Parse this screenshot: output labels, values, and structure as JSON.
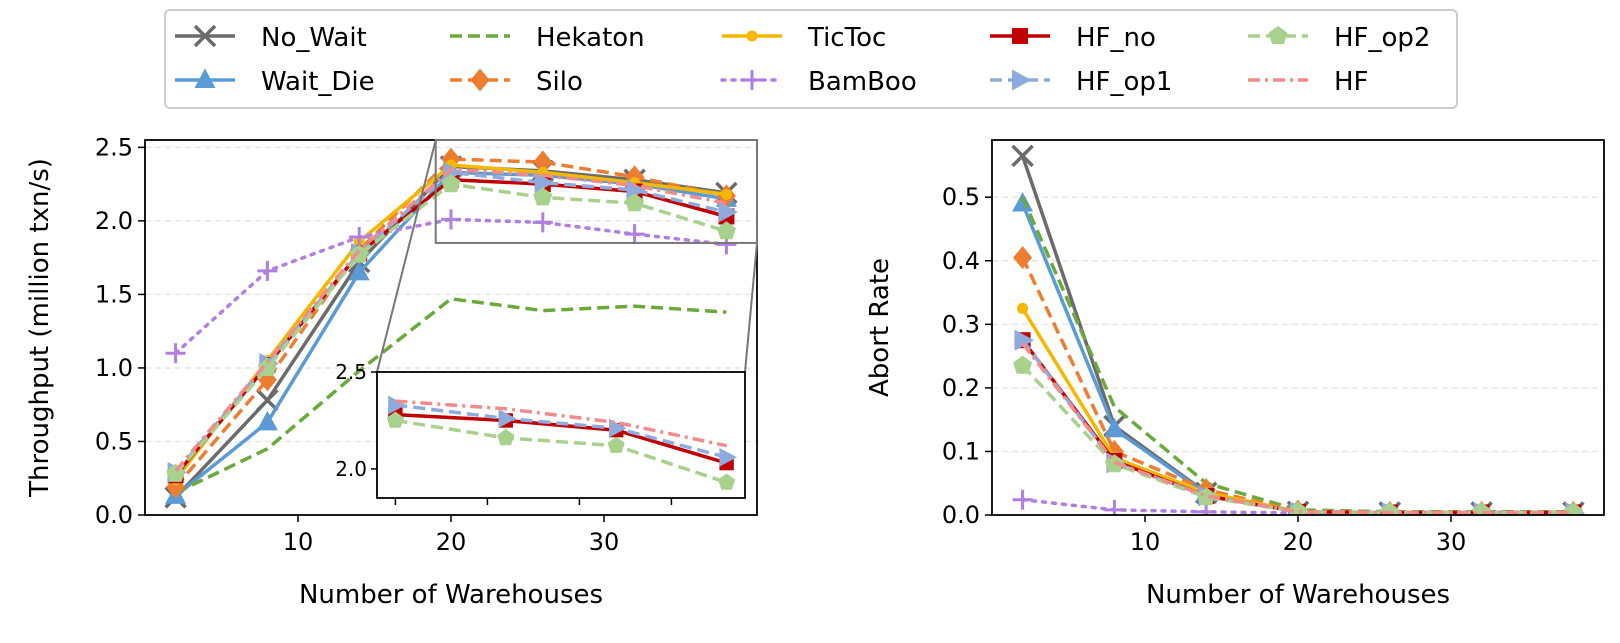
{
  "legend": {
    "entries": [
      {
        "key": "no_wait",
        "label": "No_Wait"
      },
      {
        "key": "wait_die",
        "label": "Wait_Die"
      },
      {
        "key": "hekaton",
        "label": "Hekaton"
      },
      {
        "key": "silo",
        "label": "Silo"
      },
      {
        "key": "tictoc",
        "label": "TicToc"
      },
      {
        "key": "bamboo",
        "label": "BamBoo"
      },
      {
        "key": "hf_no",
        "label": "HF_no"
      },
      {
        "key": "hf_op1",
        "label": "HF_op1"
      },
      {
        "key": "hf_op2",
        "label": "HF_op2"
      },
      {
        "key": "hf",
        "label": "HF"
      }
    ]
  },
  "styles": {
    "no_wait": {
      "color": "#6b6b6b",
      "dash": "solid",
      "marker": "x"
    },
    "wait_die": {
      "color": "#5b9bd5",
      "dash": "solid",
      "marker": "triangle"
    },
    "hekaton": {
      "color": "#6aaa3a",
      "dash": "dashed",
      "marker": "none"
    },
    "silo": {
      "color": "#ed7d31",
      "dash": "dashed",
      "marker": "diamond"
    },
    "tictoc": {
      "color": "#f5b800",
      "dash": "solid",
      "marker": "dot"
    },
    "bamboo": {
      "color": "#b07fe0",
      "dash": "dotted",
      "marker": "plus"
    },
    "hf_no": {
      "color": "#c00000",
      "dash": "solid",
      "marker": "square"
    },
    "hf_op1": {
      "color": "#8faadc",
      "dash": "dashed",
      "marker": "triangle-right"
    },
    "hf_op2": {
      "color": "#a9d18e",
      "dash": "dashed",
      "marker": "pentagon"
    },
    "hf": {
      "color": "#f08c8c",
      "dash": "dashdot",
      "marker": "none"
    }
  },
  "chart_data": [
    {
      "type": "line",
      "xlabel": "Number of Warehouses",
      "ylabel": "Throughput (million txn/s)",
      "xlim": [
        0,
        40
      ],
      "ylim": [
        0,
        2.55
      ],
      "xticks": [
        10,
        20,
        30
      ],
      "yticks": [
        0.0,
        0.5,
        1.0,
        1.5,
        2.0,
        2.5
      ],
      "ytick_labels": [
        "0.0",
        "0.5",
        "1.0",
        "1.5",
        "2.0",
        "2.5"
      ],
      "grid": "horizontal",
      "x": [
        2,
        8,
        14,
        20,
        26,
        32,
        38
      ],
      "series": [
        {
          "key": "no_wait",
          "name": "No_Wait",
          "values": [
            0.12,
            0.78,
            1.72,
            2.37,
            2.34,
            2.28,
            2.19
          ]
        },
        {
          "key": "wait_die",
          "name": "Wait_Die",
          "values": [
            0.13,
            0.63,
            1.65,
            2.33,
            2.31,
            2.25,
            2.15
          ]
        },
        {
          "key": "hekaton",
          "name": "Hekaton",
          "values": [
            0.15,
            0.45,
            0.98,
            1.47,
            1.39,
            1.42,
            1.38
          ]
        },
        {
          "key": "silo",
          "name": "Silo",
          "values": [
            0.19,
            0.92,
            1.8,
            2.42,
            2.4,
            2.3,
            2.17
          ]
        },
        {
          "key": "tictoc",
          "name": "TicToc",
          "values": [
            0.24,
            1.05,
            1.86,
            2.38,
            2.33,
            2.26,
            2.18
          ]
        },
        {
          "key": "bamboo",
          "name": "BamBoo",
          "values": [
            1.1,
            1.66,
            1.89,
            2.01,
            1.99,
            1.91,
            1.84
          ]
        },
        {
          "key": "hf_no",
          "name": "HF_no",
          "values": [
            0.27,
            1.02,
            1.78,
            2.28,
            2.25,
            2.2,
            2.03
          ]
        },
        {
          "key": "hf_op1",
          "name": "HF_op1",
          "values": [
            0.29,
            1.03,
            1.78,
            2.33,
            2.26,
            2.21,
            2.06
          ]
        },
        {
          "key": "hf_op2",
          "name": "HF_op2",
          "values": [
            0.28,
            1.0,
            1.77,
            2.25,
            2.16,
            2.12,
            1.93
          ]
        },
        {
          "key": "hf",
          "name": "HF",
          "values": [
            0.3,
            1.04,
            1.8,
            2.35,
            2.31,
            2.24,
            2.12
          ]
        }
      ],
      "inset": {
        "xlim": [
          19,
          39
        ],
        "ylim": [
          1.85,
          2.5
        ],
        "yticks": [
          2.0,
          2.5
        ],
        "ytick_labels": [
          "2.0",
          "2.5"
        ],
        "series_keys": [
          "hf_no",
          "hf_op1",
          "hf_op2",
          "hf"
        ]
      }
    },
    {
      "type": "line",
      "xlabel": "Number of Warehouses",
      "ylabel": "Abort Rate",
      "xlim": [
        0,
        40
      ],
      "ylim": [
        0,
        0.59
      ],
      "xticks": [
        10,
        20,
        30
      ],
      "yticks": [
        0.0,
        0.1,
        0.2,
        0.3,
        0.4,
        0.5
      ],
      "ytick_labels": [
        "0.0",
        "0.1",
        "0.2",
        "0.3",
        "0.4",
        "0.5"
      ],
      "grid": "horizontal",
      "x": [
        2,
        8,
        14,
        20,
        26,
        32,
        38
      ],
      "series": [
        {
          "key": "no_wait",
          "name": "No_Wait",
          "values": [
            0.565,
            0.14,
            0.035,
            0.005,
            0.004,
            0.004,
            0.004
          ]
        },
        {
          "key": "wait_die",
          "name": "Wait_Die",
          "values": [
            0.49,
            0.135,
            0.034,
            0.005,
            0.004,
            0.004,
            0.004
          ]
        },
        {
          "key": "hekaton",
          "name": "Hekaton",
          "values": [
            0.5,
            0.17,
            0.05,
            0.008,
            0.005,
            0.005,
            0.005
          ]
        },
        {
          "key": "silo",
          "name": "Silo",
          "values": [
            0.405,
            0.1,
            0.04,
            0.006,
            0.004,
            0.004,
            0.004
          ]
        },
        {
          "key": "tictoc",
          "name": "TicToc",
          "values": [
            0.325,
            0.09,
            0.035,
            0.005,
            0.004,
            0.004,
            0.004
          ]
        },
        {
          "key": "bamboo",
          "name": "BamBoo",
          "values": [
            0.024,
            0.008,
            0.005,
            0.003,
            0.003,
            0.003,
            0.003
          ]
        },
        {
          "key": "hf_no",
          "name": "HF_no",
          "values": [
            0.275,
            0.085,
            0.03,
            0.005,
            0.004,
            0.004,
            0.004
          ]
        },
        {
          "key": "hf_op1",
          "name": "HF_op1",
          "values": [
            0.275,
            0.082,
            0.03,
            0.005,
            0.004,
            0.004,
            0.004
          ]
        },
        {
          "key": "hf_op2",
          "name": "HF_op2",
          "values": [
            0.235,
            0.08,
            0.028,
            0.005,
            0.004,
            0.004,
            0.004
          ]
        },
        {
          "key": "hf",
          "name": "HF",
          "values": [
            0.27,
            0.083,
            0.03,
            0.005,
            0.004,
            0.004,
            0.004
          ]
        }
      ]
    }
  ]
}
